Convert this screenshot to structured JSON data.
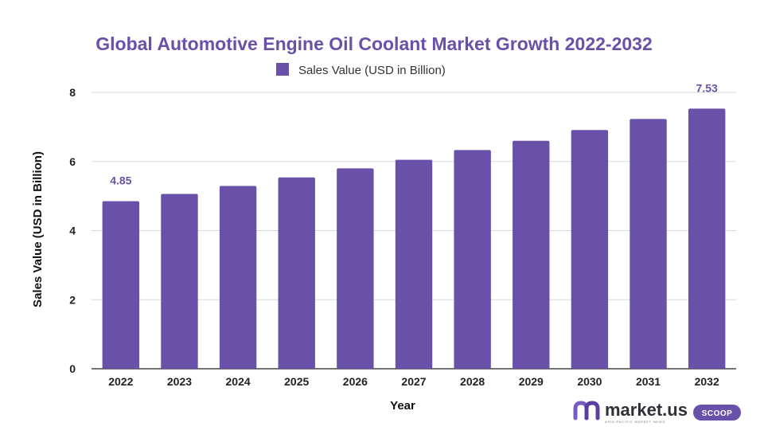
{
  "chart_data": {
    "type": "bar",
    "title": "Global Automotive Engine Oil Coolant Market Growth 2022-2032",
    "xlabel": "Year",
    "ylabel": "Sales Value (USD in Billion)",
    "categories": [
      "2022",
      "2023",
      "2024",
      "2025",
      "2026",
      "2027",
      "2028",
      "2029",
      "2030",
      "2031",
      "2032"
    ],
    "series": [
      {
        "name": "Sales Value (USD in Billion)",
        "values": [
          4.85,
          5.06,
          5.29,
          5.54,
          5.8,
          6.05,
          6.33,
          6.6,
          6.91,
          7.23,
          7.53
        ]
      }
    ],
    "data_labels": [
      {
        "category": "2022",
        "text": "4.85"
      },
      {
        "category": "2032",
        "text": "7.53"
      }
    ],
    "ylim": [
      0,
      8
    ],
    "yticks": [
      0,
      2,
      4,
      6,
      8
    ],
    "grid": true,
    "legend": "top-center"
  },
  "colors": {
    "bar": "#6950a8",
    "title": "#6950a8",
    "grid": "#d9d9d9",
    "axis": "#222222",
    "logo_accent": "#7a5bc2"
  },
  "branding": {
    "name": "market.us",
    "badge": "SCOOP",
    "tagline": "ASIA-PACIFIC MARKET NEWS"
  }
}
